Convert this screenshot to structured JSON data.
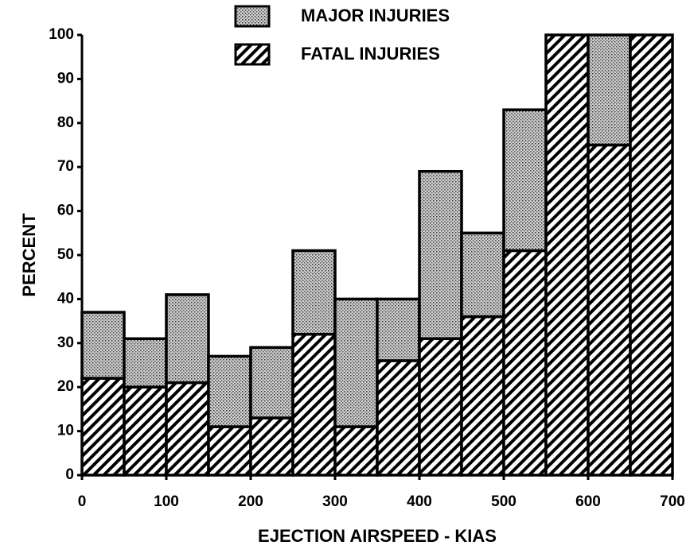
{
  "chart_data": {
    "type": "histogram",
    "x_label": "EJECTION AIRSPEED - KIAS",
    "y_label": "PERCENT",
    "bins": [
      0,
      50,
      100,
      150,
      200,
      250,
      300,
      350,
      400,
      450,
      500,
      550,
      600,
      650,
      700
    ],
    "series": [
      {
        "name": "MAJOR INJURIES",
        "color": "#000000",
        "pattern": "dots",
        "values": [
          15,
          11,
          20,
          16,
          16,
          19,
          29,
          14,
          38,
          19,
          32,
          0,
          25,
          0
        ]
      },
      {
        "name": "FATAL INJURIES",
        "color": "#000000",
        "pattern": "hatch",
        "values": [
          22,
          20,
          21,
          11,
          13,
          32,
          11,
          26,
          31,
          36,
          51,
          100,
          75,
          100
        ]
      }
    ],
    "stacked": true,
    "xlim": [
      0,
      700
    ],
    "xticks": [
      0,
      100,
      200,
      300,
      400,
      500,
      600,
      700
    ],
    "ylim": [
      0,
      100
    ],
    "yticks": [
      0,
      10,
      20,
      30,
      40,
      50,
      60,
      70,
      80,
      90,
      100
    ],
    "legend": "top"
  }
}
